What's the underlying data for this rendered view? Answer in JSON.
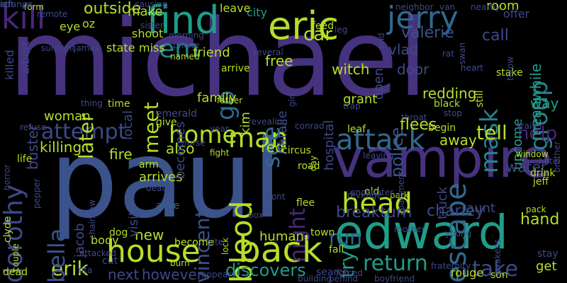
{
  "title": "word cloud",
  "background": "#000000",
  "words": [
    {
      "text": "michael",
      "color": "#46327e"
    },
    {
      "text": "paul",
      "color": "#3b528b"
    },
    {
      "text": "vampire",
      "color": "#46327e"
    },
    {
      "text": "edward",
      "color": "#1f9e89"
    },
    {
      "text": "house",
      "color": "#b5de2b"
    },
    {
      "text": "back",
      "color": "#b5de2b"
    },
    {
      "text": "find",
      "color": "#1f9e89"
    },
    {
      "text": "eric",
      "color": "#b5de2b"
    },
    {
      "text": "jerry",
      "color": "#31688e"
    },
    {
      "text": "kill",
      "color": "#482878"
    },
    {
      "text": "dorothy",
      "color": "#3e4989"
    },
    {
      "text": "blood",
      "color": "#b5de2b"
    },
    {
      "text": "attack",
      "color": "#31688e"
    },
    {
      "text": "escape",
      "color": "#31688e"
    },
    {
      "text": "head",
      "color": "#b5de2b"
    },
    {
      "text": "group",
      "color": "#26828e"
    },
    {
      "text": "mask",
      "color": "#26828e"
    },
    {
      "text": "home",
      "color": "#b5de2b"
    },
    {
      "text": "man",
      "color": "#b5de2b"
    },
    {
      "text": "attempt",
      "color": "#3e4989"
    },
    {
      "text": "return",
      "color": "#1f9e89"
    },
    {
      "text": "take",
      "color": "#3e4989"
    },
    {
      "text": "try",
      "color": "#1f9e89"
    },
    {
      "text": "run",
      "color": "#31688e"
    },
    {
      "text": "erik",
      "color": "#b5de2b"
    },
    {
      "text": "bella",
      "color": "#3b528b"
    },
    {
      "text": "night",
      "color": "#482878"
    },
    {
      "text": "vincent",
      "color": "#3b528b"
    },
    {
      "text": "later",
      "color": "#b5de2b"
    },
    {
      "text": "meet",
      "color": "#b5de2b"
    },
    {
      "text": "em",
      "color": "#26828e"
    },
    {
      "text": "see",
      "color": "#31688e"
    },
    {
      "text": "go",
      "color": "#31688e"
    },
    {
      "text": "tell",
      "color": "#b5de2b"
    },
    {
      "text": "help",
      "color": "#482878"
    },
    {
      "text": "discovers",
      "color": "#1f9e89"
    },
    {
      "text": "charley",
      "color": "#3e4989"
    },
    {
      "text": "breakturn",
      "color": "#3e4989"
    },
    {
      "text": "hand",
      "color": "#b5de2b"
    },
    {
      "text": "outside",
      "color": "#b5de2b"
    },
    {
      "text": "make",
      "color": "#b5de2b"
    },
    {
      "text": "room",
      "color": "#b5de2b"
    },
    {
      "text": "car",
      "color": "#b5de2b"
    },
    {
      "text": "valerie",
      "color": "#3b528b"
    },
    {
      "text": "vlad",
      "color": "#3e4989"
    },
    {
      "text": "free",
      "color": "#b5de2b"
    },
    {
      "text": "call",
      "color": "#3e4989"
    },
    {
      "text": "door",
      "color": "#3e4989"
    },
    {
      "text": "police",
      "color": "#3b528b"
    },
    {
      "text": "witch",
      "color": "#b5de2b"
    },
    {
      "text": "flees",
      "color": "#b5de2b"
    },
    {
      "text": "killing",
      "color": "#b5de2b"
    },
    {
      "text": "away",
      "color": "#b5de2b"
    },
    {
      "text": "water",
      "color": "#3e4989"
    },
    {
      "text": "fire",
      "color": "#b5de2b"
    },
    {
      "text": "also",
      "color": "#b5de2b"
    },
    {
      "text": "red",
      "color": "#b5de2b"
    },
    {
      "text": "arrives",
      "color": "#b5de2b"
    },
    {
      "text": "new",
      "color": "#b5de2b"
    },
    {
      "text": "human",
      "color": "#b5de2b"
    },
    {
      "text": "aunt",
      "color": "#3e4989"
    },
    {
      "text": "truck",
      "color": "#3e4989"
    },
    {
      "text": "however",
      "color": "#3e4989"
    },
    {
      "text": "next",
      "color": "#3e4989"
    },
    {
      "text": "rouge",
      "color": "#b5de2b"
    },
    {
      "text": "get",
      "color": "#b5de2b"
    },
    {
      "text": "cut",
      "color": "#3e4989"
    },
    {
      "text": "way",
      "color": "#1f9e89"
    },
    {
      "text": "redding",
      "color": "#b5de2b"
    },
    {
      "text": "meanwhile",
      "color": "#1f9e89"
    },
    {
      "text": "upcome",
      "color": "#1f9e89"
    },
    {
      "text": "woman",
      "color": "#b5de2b"
    },
    {
      "text": "local",
      "color": "#3e4989"
    },
    {
      "text": "buster",
      "color": "#3e4989"
    },
    {
      "text": "becomes",
      "color": "#3e4989"
    },
    {
      "text": "friend",
      "color": "#b5de2b"
    },
    {
      "text": "open",
      "color": "#3e4989"
    },
    {
      "text": "hospital",
      "color": "#3e4989"
    },
    {
      "text": "natalie",
      "color": "#3e4989"
    },
    {
      "text": "kim",
      "color": "#b5de2b"
    },
    {
      "text": "family",
      "color": "#b5de2b"
    },
    {
      "text": "grant",
      "color": "#b5de2b"
    },
    {
      "text": "state",
      "color": "#b5de2b"
    },
    {
      "text": "miss",
      "color": "#b5de2b"
    },
    {
      "text": "shoot",
      "color": "#b5de2b"
    },
    {
      "text": "feed",
      "color": "#b5de2b"
    },
    {
      "text": "eye",
      "color": "#b5de2b"
    },
    {
      "text": "oz",
      "color": "#b5de2b"
    },
    {
      "text": "killed",
      "color": "#3e4989"
    },
    {
      "text": "albert",
      "color": "#3e4989"
    },
    {
      "text": "city",
      "color": "#1f9e89"
    },
    {
      "text": "leave",
      "color": "#b5de2b"
    },
    {
      "text": "offer",
      "color": "#3e4989"
    },
    {
      "text": "jacob",
      "color": "#3e4989"
    },
    {
      "text": "visit",
      "color": "#3e4989"
    },
    {
      "text": "body",
      "color": "#b5de2b"
    },
    {
      "text": "dog",
      "color": "#b5de2b"
    },
    {
      "text": "become",
      "color": "#b5de2b"
    },
    {
      "text": "circus",
      "color": "#b5de2b"
    },
    {
      "text": "leaf",
      "color": "#b5de2b"
    },
    {
      "text": "begin",
      "color": "#b5de2b"
    },
    {
      "text": "black",
      "color": "#b5de2b"
    },
    {
      "text": "still",
      "color": "#b5de2b"
    },
    {
      "text": "stake",
      "color": "#b5de2b"
    },
    {
      "text": "alive",
      "color": "#31688e"
    },
    {
      "text": "death",
      "color": "#3e4989"
    },
    {
      "text": "fight",
      "color": "#b5de2b"
    },
    {
      "text": "life",
      "color": "#b5de2b"
    },
    {
      "text": "road",
      "color": "#b5de2b"
    },
    {
      "text": "day",
      "color": "#b5de2b"
    },
    {
      "text": "flee",
      "color": "#b5de2b"
    },
    {
      "text": "old",
      "color": "#b5de2b"
    },
    {
      "text": "drink",
      "color": "#b5de2b"
    },
    {
      "text": "jeff",
      "color": "#b5de2b"
    },
    {
      "text": "town",
      "color": "#b5de2b"
    },
    {
      "text": "fall",
      "color": "#b5de2b"
    },
    {
      "text": "search",
      "color": "#3e4989"
    },
    {
      "text": "appears",
      "color": "#3e4989"
    },
    {
      "text": "dead",
      "color": "#b5de2b"
    },
    {
      "text": "couple",
      "color": "#b5de2b"
    },
    {
      "text": "stay",
      "color": "#3e4989"
    },
    {
      "text": "son",
      "color": "#b5de2b"
    },
    {
      "text": "emerald",
      "color": "#3e4989"
    },
    {
      "text": "time",
      "color": "#b5de2b"
    },
    {
      "text": "give",
      "color": "#b5de2b"
    },
    {
      "text": "arrive",
      "color": "#b5de2b"
    },
    {
      "text": "father",
      "color": "#b5de2b"
    },
    {
      "text": "arm",
      "color": "#b5de2b"
    },
    {
      "text": "clyde",
      "color": "#b5de2b"
    },
    {
      "text": "attacked",
      "color": "#3e4989"
    },
    {
      "text": "burn",
      "color": "#b5de2b"
    },
    {
      "text": "lock",
      "color": "#b5de2b"
    },
    {
      "text": "girl",
      "color": "#3e4989"
    },
    {
      "text": "sister",
      "color": "#3e4989"
    },
    {
      "text": "named",
      "color": "#b5de2b"
    },
    {
      "text": "form",
      "color": "#b5de2b"
    },
    {
      "text": "brother",
      "color": "#3e4989"
    },
    {
      "text": "chainsaw",
      "color": "#3e4989"
    },
    {
      "text": "window",
      "color": "#b5de2b"
    },
    {
      "text": "hotel",
      "color": "#3e4989"
    },
    {
      "text": "trailer",
      "color": "#3e4989"
    },
    {
      "text": "revenge",
      "color": "#3e4989"
    },
    {
      "text": "park",
      "color": "#b5de2b"
    },
    {
      "text": "pack",
      "color": "#b5de2b"
    },
    {
      "text": "horror",
      "color": "#3e4989"
    },
    {
      "text": "refuse",
      "color": "#3e4989"
    },
    {
      "text": "pepper",
      "color": "#3e4989"
    },
    {
      "text": "bite",
      "color": "#3e4989"
    },
    {
      "text": "rita",
      "color": "#3e4989"
    },
    {
      "text": "box",
      "color": "#3e4989"
    },
    {
      "text": "revealing",
      "color": "#3e4989"
    },
    {
      "text": "conrad",
      "color": "#3e4989"
    },
    {
      "text": "building",
      "color": "#3e4989"
    },
    {
      "text": "behind",
      "color": "#3e4989"
    },
    {
      "text": "boyfriend",
      "color": "#3e4989"
    },
    {
      "text": "forced",
      "color": "#3e4989"
    },
    {
      "text": "fraternity",
      "color": "#3e4989"
    },
    {
      "text": "awakens",
      "color": "#3e4989"
    },
    {
      "text": "young",
      "color": "#3e4989"
    },
    {
      "text": "mother",
      "color": "#3e4989"
    },
    {
      "text": "encounter",
      "color": "#3e4989"
    },
    {
      "text": "apartment",
      "color": "#3e4989"
    },
    {
      "text": "leaving",
      "color": "#3e4989"
    },
    {
      "text": "stop",
      "color": "#3e4989"
    },
    {
      "text": "throat",
      "color": "#3e4989"
    },
    {
      "text": "throw",
      "color": "#3e4989"
    },
    {
      "text": "rat",
      "color": "#3e4989"
    },
    {
      "text": "swan",
      "color": "#3e4989"
    },
    {
      "text": "heart",
      "color": "#3e4989"
    },
    {
      "text": "end",
      "color": "#3e4989"
    },
    {
      "text": "leg",
      "color": "#3e4989"
    },
    {
      "text": "neighbor",
      "color": "#3e4989"
    },
    {
      "text": "van",
      "color": "#3e4989"
    },
    {
      "text": "nearby",
      "color": "#3e4989"
    },
    {
      "text": "causing",
      "color": "#3e4989"
    },
    {
      "text": "sunlight",
      "color": "#3e4989"
    },
    {
      "text": "james",
      "color": "#3e4989"
    },
    {
      "text": "phone",
      "color": "#3e4989"
    },
    {
      "text": "morning",
      "color": "#3e4989"
    },
    {
      "text": "several",
      "color": "#3e4989"
    },
    {
      "text": "coven",
      "color": "#3e4989"
    },
    {
      "text": "nurse",
      "color": "#3e4989"
    },
    {
      "text": "year",
      "color": "#3e4989"
    },
    {
      "text": "front",
      "color": "#3e4989"
    },
    {
      "text": "trap",
      "color": "#3e4989"
    },
    {
      "text": "remote",
      "color": "#3e4989"
    },
    {
      "text": "thing",
      "color": "#3e4989"
    },
    {
      "text": "left",
      "color": "#3e4989"
    },
    {
      "text": "strange",
      "color": "#3e4989"
    },
    {
      "text": "ed",
      "color": "#3e4989"
    }
  ]
}
